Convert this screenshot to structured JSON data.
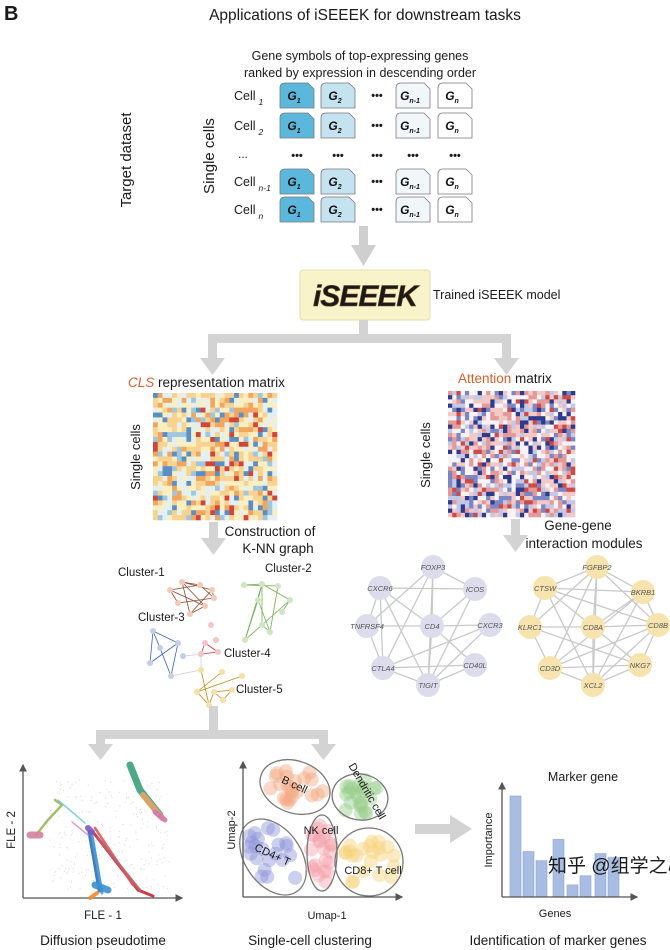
{
  "panel_label": "B",
  "title": "Applications of iSEEEK for downstream tasks",
  "input": {
    "subtitle_line1": "Gene symbols of top-expressing genes",
    "subtitle_line2": "ranked by expression in descending order",
    "target_dataset_label": "Target dataset",
    "single_cells_label": "Single cells",
    "rows": [
      {
        "cell": "Cell",
        "sub": "1"
      },
      {
        "cell": "Cell",
        "sub": "2"
      },
      {
        "cell": "...",
        "sub": ""
      },
      {
        "cell": "Cell",
        "sub": "n-1"
      },
      {
        "cell": "Cell",
        "sub": "n"
      }
    ],
    "genes": [
      {
        "g": "G",
        "sub": "1",
        "color": "#5bb8dc"
      },
      {
        "g": "G",
        "sub": "2",
        "color": "#c4e2ef"
      },
      {
        "g": "G",
        "sub": "n-1",
        "color": "#f1f6f9"
      },
      {
        "g": "G",
        "sub": "n",
        "color": "#ffffff"
      }
    ],
    "ellipsis": "•••"
  },
  "model": {
    "logo_text": "iSEEEK",
    "label": "Trained iSEEEK model",
    "logo_bg": "#f8f3c8",
    "logo_color": "#9b6e3c"
  },
  "cls": {
    "title_highlight": "CLS",
    "title_rest": " representation matrix",
    "y_label": "Single cells",
    "step_line1": "Construction of",
    "step_line2": "K-NN graph",
    "highlight_color": "#d2622c"
  },
  "attention": {
    "title_highlight": "Attention",
    "title_rest": " matrix",
    "y_label": "Single cells",
    "step_line1": "Gene-gene",
    "step_line2": "interaction modules"
  },
  "clusters": [
    {
      "label": "Cluster-1",
      "color": "#8b4a2e",
      "node": "#f4c9b8"
    },
    {
      "label": "Cluster-2",
      "color": "#77ad55",
      "node": "#cfe6c0"
    },
    {
      "label": "Cluster-3",
      "color": "#3c62a8",
      "node": "#c5cde8"
    },
    {
      "label": "Cluster-4",
      "color": "#c0393f",
      "node": "#f4c6cb"
    },
    {
      "label": "Cluster-5",
      "color": "#b58b1c",
      "node": "#f5e0a6"
    }
  ],
  "module_cd4": {
    "node_color": "#dcdcec",
    "genes": [
      "FOXP3",
      "CXCR6",
      "ICOS",
      "TNFRSF4",
      "CD4",
      "CXCR3",
      "CTLA4",
      "CD40L",
      "TIGIT"
    ]
  },
  "module_cd8": {
    "node_color": "#f6e3ad",
    "genes": [
      "FGFBP2",
      "CTSW",
      "BKRB1",
      "KLRC1",
      "CD8A",
      "CD8B",
      "CD3D",
      "NKG7",
      "XCL2"
    ]
  },
  "diffusion": {
    "x_label": "FLE - 1",
    "y_label": "FLE - 2",
    "caption": "Diffusion pseudotime"
  },
  "clustering": {
    "x_label": "Umap-1",
    "y_label": "Umap-2",
    "caption": "Single-cell clustering",
    "cell_types": [
      {
        "label": "B cell",
        "color": "#f2a883"
      },
      {
        "label": "Dendritic cell",
        "color": "#98cf8c"
      },
      {
        "label": "CD4+ T",
        "color": "#8f95d6"
      },
      {
        "label": "NK cell",
        "color": "#f4a1aa"
      },
      {
        "label": "CD8+ T cell",
        "color": "#f6d27a"
      }
    ]
  },
  "marker": {
    "title": "Marker gene",
    "x_label": "Genes",
    "y_label": "Importance",
    "caption": "Identification of marker genes",
    "bar_color": "#a9bde3",
    "values": [
      10,
      4.5,
      3.6,
      5.7,
      1.2,
      2.1,
      4.3,
      3.9
    ]
  },
  "watermark": "知乎 @组学之心"
}
